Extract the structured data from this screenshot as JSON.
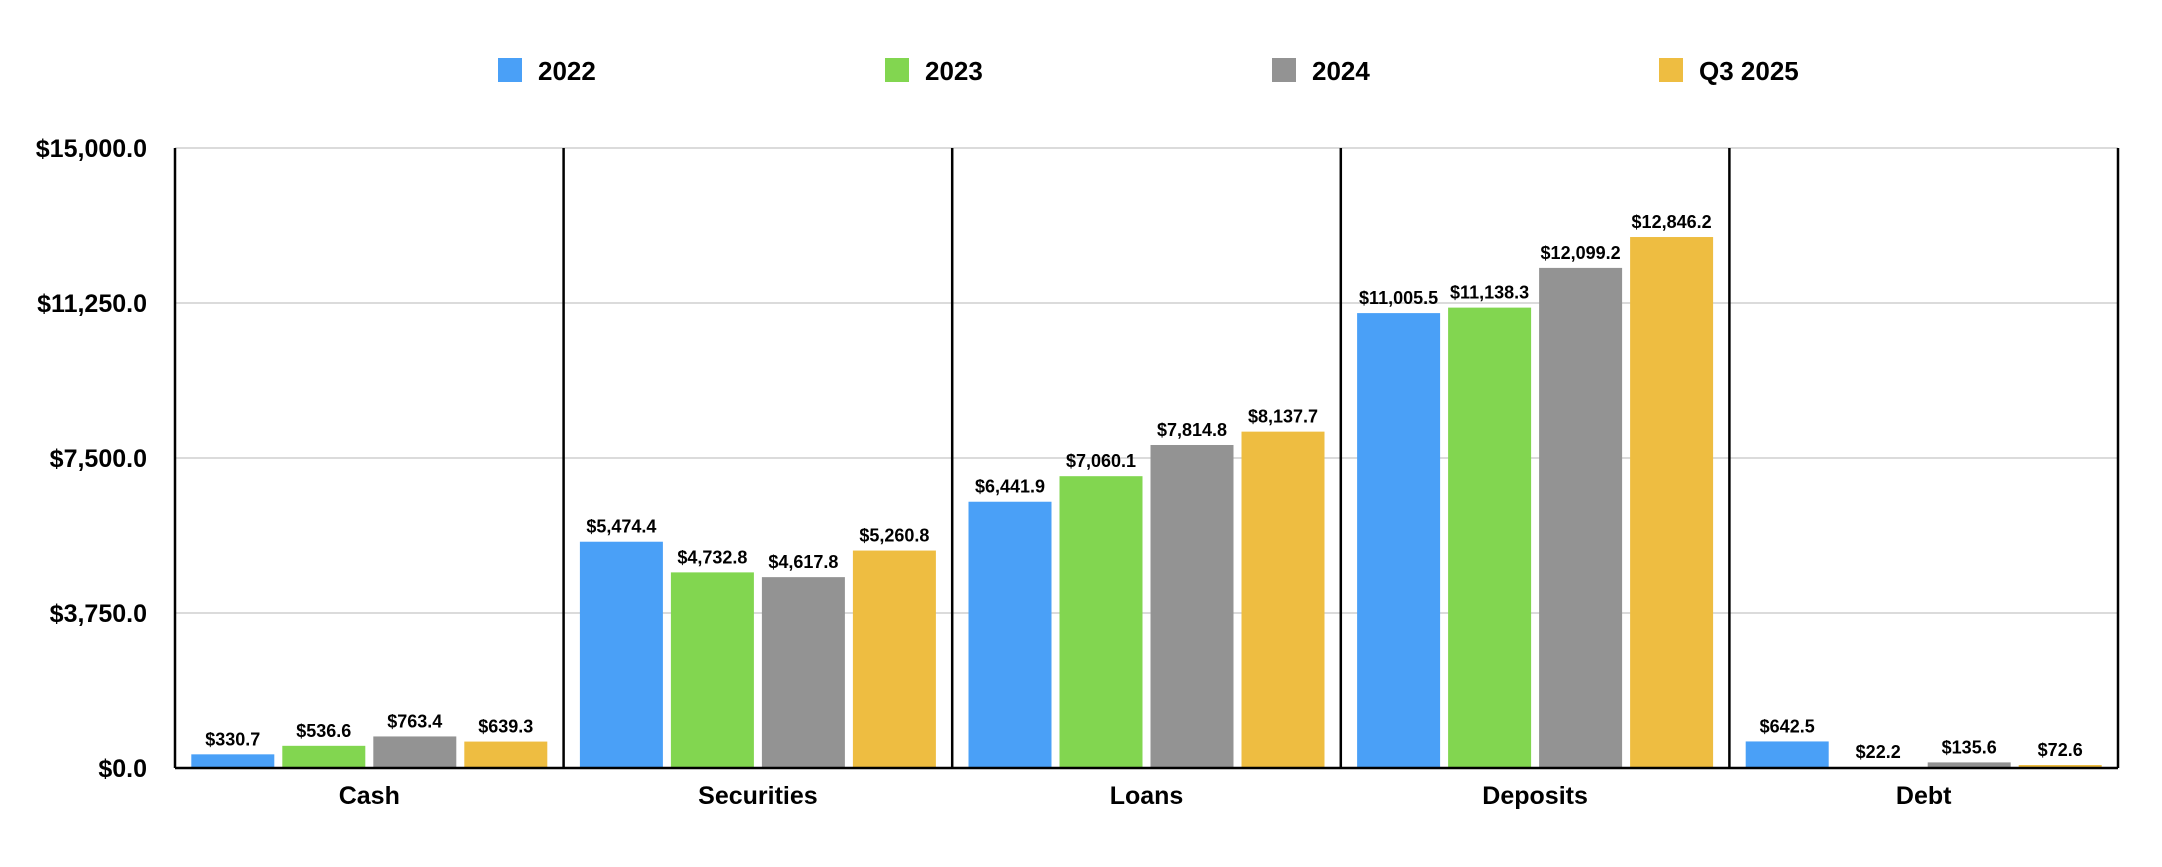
{
  "chart_data": {
    "type": "bar",
    "title": "",
    "xlabel": "",
    "ylabel": "",
    "categories": [
      "Cash",
      "Securities",
      "Loans",
      "Deposits",
      "Debt"
    ],
    "series": [
      {
        "name": "2022",
        "color": "#4aa0f7",
        "values": [
          330.7,
          5474.4,
          6441.9,
          11005.5,
          642.5
        ],
        "labels": [
          "$330.7",
          "$5,474.4",
          "$6,441.9",
          "$11,005.5",
          "$642.5"
        ]
      },
      {
        "name": "2023",
        "color": "#82d650",
        "values": [
          536.6,
          4732.8,
          7060.1,
          11138.3,
          22.2
        ],
        "labels": [
          "$536.6",
          "$4,732.8",
          "$7,060.1",
          "$11,138.3",
          "$22.2"
        ]
      },
      {
        "name": "2024",
        "color": "#939393",
        "values": [
          763.4,
          4617.8,
          7814.8,
          12099.2,
          135.6
        ],
        "labels": [
          "$763.4",
          "$4,617.8",
          "$7,814.8",
          "$12,099.2",
          "$135.6"
        ]
      },
      {
        "name": "Q3 2025",
        "color": "#eebd41",
        "values": [
          639.3,
          5260.8,
          8137.7,
          12846.2,
          72.6
        ],
        "labels": [
          "$639.3",
          "$5,260.8",
          "$8,137.7",
          "$12,846.2",
          "$72.6"
        ]
      }
    ],
    "ylim": [
      0,
      15000
    ],
    "yticks": [
      0,
      3750,
      7500,
      11250,
      15000
    ],
    "ytick_labels": [
      "$0.0",
      "$3,750.0",
      "$7,500.0",
      "$11,250.0",
      "$15,000.0"
    ],
    "grid": true,
    "legend_position": "top"
  }
}
